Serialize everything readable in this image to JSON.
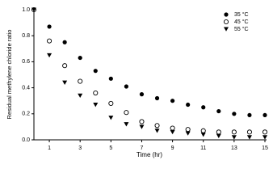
{
  "chart_data": {
    "type": "scatter",
    "x_label": "Time (hr)",
    "y_label": "Residual methylene chloride ratio",
    "x": [
      0,
      1,
      2,
      3,
      4,
      5,
      6,
      7,
      8,
      9,
      10,
      11,
      12,
      13,
      14,
      15
    ],
    "series": [
      {
        "name": "35 °C",
        "color": "#000000",
        "marker": "filled-circle",
        "values": [
          1.0,
          0.87,
          0.75,
          0.63,
          0.53,
          0.47,
          0.41,
          0.35,
          0.32,
          0.3,
          0.27,
          0.25,
          0.22,
          0.2,
          0.19,
          0.19
        ]
      },
      {
        "name": "45 °C",
        "color": "#000000",
        "marker": "open-circle",
        "values": [
          1.0,
          0.76,
          0.57,
          0.45,
          0.36,
          0.28,
          0.21,
          0.14,
          0.11,
          0.09,
          0.08,
          0.07,
          0.06,
          0.06,
          0.06,
          0.06
        ]
      },
      {
        "name": "55 °C",
        "color": "#000000",
        "marker": "triangle-down",
        "values": [
          1.0,
          0.65,
          0.44,
          0.34,
          0.27,
          0.17,
          0.12,
          0.1,
          0.07,
          0.06,
          0.05,
          0.04,
          0.03,
          0.02,
          0.02,
          0.02
        ]
      }
    ],
    "xlim": [
      0,
      15
    ],
    "xticks": [
      1,
      3,
      5,
      7,
      9,
      11,
      13,
      15
    ],
    "ylim": [
      0,
      1
    ],
    "yticks": [
      {
        "value": 0,
        "label": "0.0"
      },
      0.2,
      0.4,
      0.6,
      0.8,
      {
        "value": 1,
        "label": "1.0"
      }
    ],
    "legend": "upper-right",
    "grid": false
  }
}
